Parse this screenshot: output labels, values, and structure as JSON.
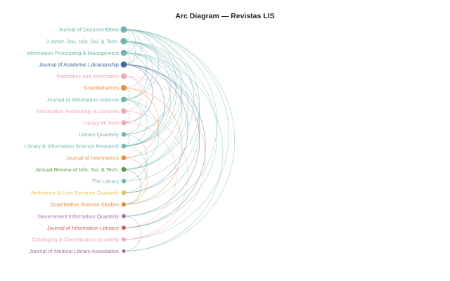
{
  "title": "Arc Diagram — Revistas LIS",
  "nodes": [
    {
      "label": "Journal of Documentation",
      "color": "#6fb8b0",
      "size": 4.6
    },
    {
      "label": "J. Amer. Soc. Info. Sci. & Tech.",
      "color": "#6fb8b0",
      "size": 4.6
    },
    {
      "label": "Information Processing & Management",
      "color": "#6fb8b0",
      "size": 4.4
    },
    {
      "label": "Journal of Academic Librarianship",
      "color": "#4a6898",
      "size": 4.4
    },
    {
      "label": "Telematics and Informatics",
      "color": "#f2a6ae",
      "size": 4.0
    },
    {
      "label": "Scientometrics",
      "color": "#ec8c3a",
      "size": 4.0
    },
    {
      "label": "Journal of Information Science",
      "color": "#6fb8b0",
      "size": 4.0
    },
    {
      "label": "Information Technology & Libraries",
      "color": "#f2a6ae",
      "size": 3.8
    },
    {
      "label": "Library Hi Tech",
      "color": "#f2a6ae",
      "size": 3.6
    },
    {
      "label": "Library Quarterly",
      "color": "#6fb8b0",
      "size": 3.4
    },
    {
      "label": "Library & Information Science Research",
      "color": "#6fb8b0",
      "size": 3.4
    },
    {
      "label": "Journal of Informetrics",
      "color": "#ec8c3a",
      "size": 3.4
    },
    {
      "label": "Annual Review of Info. Sci. & Tech.",
      "color": "#5a9a4a",
      "size": 3.4
    },
    {
      "label": "The Library",
      "color": "#6fb8b0",
      "size": 3.2
    },
    {
      "label": "Reference & User Services Quarterly",
      "color": "#e6c24a",
      "size": 3.2
    },
    {
      "label": "Quantitative Science Studies",
      "color": "#ec8c3a",
      "size": 3.2
    },
    {
      "label": "Government Information Quarterly",
      "color": "#a576a8",
      "size": 3.0
    },
    {
      "label": "Journal of Information Literacy",
      "color": "#d65a5a",
      "size": 3.0
    },
    {
      "label": "Cataloging & Classification Quarterly",
      "color": "#f2a6ae",
      "size": 2.8
    },
    {
      "label": "Journal of Medical Library Association",
      "color": "#a576a8",
      "size": 2.6
    }
  ],
  "links": [
    [
      0,
      1
    ],
    [
      0,
      2
    ],
    [
      0,
      3
    ],
    [
      0,
      6
    ],
    [
      0,
      9
    ],
    [
      0,
      10
    ],
    [
      0,
      12
    ],
    [
      0,
      13
    ],
    [
      0,
      16
    ],
    [
      0,
      18
    ],
    [
      0,
      19
    ],
    [
      1,
      2
    ],
    [
      1,
      3
    ],
    [
      1,
      5
    ],
    [
      1,
      6
    ],
    [
      1,
      9
    ],
    [
      1,
      10
    ],
    [
      1,
      11
    ],
    [
      1,
      12
    ],
    [
      1,
      14
    ],
    [
      1,
      17
    ],
    [
      2,
      3
    ],
    [
      2,
      6
    ],
    [
      2,
      10
    ],
    [
      2,
      12
    ],
    [
      2,
      15
    ],
    [
      2,
      19
    ],
    [
      3,
      8
    ],
    [
      3,
      10
    ],
    [
      3,
      14
    ],
    [
      3,
      16
    ],
    [
      3,
      17
    ],
    [
      4,
      7
    ],
    [
      4,
      8
    ],
    [
      4,
      18
    ],
    [
      5,
      6
    ],
    [
      5,
      11
    ],
    [
      5,
      15
    ],
    [
      6,
      9
    ],
    [
      6,
      10
    ],
    [
      6,
      12
    ],
    [
      7,
      8
    ],
    [
      7,
      18
    ],
    [
      8,
      17
    ],
    [
      9,
      10
    ],
    [
      9,
      13
    ],
    [
      10,
      14
    ],
    [
      11,
      15
    ],
    [
      12,
      15
    ],
    [
      16,
      19
    ]
  ]
}
